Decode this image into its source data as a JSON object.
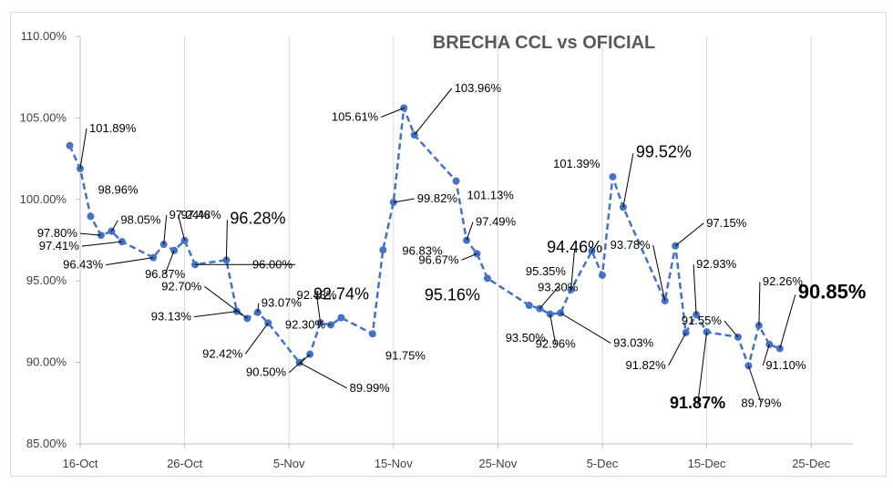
{
  "chart_data": {
    "type": "line",
    "title": "BRECHA CCL vs OFICIAL",
    "xlabel": "",
    "ylabel": "",
    "ylim": [
      85,
      110
    ],
    "yticks": [
      85,
      90,
      95,
      100,
      105,
      110
    ],
    "ytick_labels": [
      "85.00%",
      "90.00%",
      "95.00%",
      "100.00%",
      "105.00%",
      "110.00%"
    ],
    "xtick_labels": [
      "16-Oct",
      "26-Oct",
      "5-Nov",
      "15-Nov",
      "25-Nov",
      "5-Dec",
      "15-Dec",
      "25-Dec"
    ],
    "x_day_range": [
      0,
      74
    ],
    "grid": "vertical",
    "series_color": "#4472C4",
    "points": [
      {
        "x": "15-Oct",
        "y": 103.3,
        "label": ""
      },
      {
        "x": "16-Oct",
        "y": 101.89,
        "label": "101.89%"
      },
      {
        "x": "17-Oct",
        "y": 98.96,
        "label": "98.96%"
      },
      {
        "x": "18-Oct",
        "y": 97.8,
        "label": "97.80%"
      },
      {
        "x": "19-Oct",
        "y": 98.05,
        "label": "98.05%"
      },
      {
        "x": "20-Oct",
        "y": 97.41,
        "label": "97.41%"
      },
      {
        "x": "23-Oct",
        "y": 96.43,
        "label": "96.43%"
      },
      {
        "x": "24-Oct",
        "y": 97.24,
        "label": "97.24%"
      },
      {
        "x": "25-Oct",
        "y": 96.87,
        "label": "96.87%"
      },
      {
        "x": "26-Oct",
        "y": 97.48,
        "label": "97.48%"
      },
      {
        "x": "27-Oct",
        "y": 96.0,
        "label": "96.00%"
      },
      {
        "x": "30-Oct",
        "y": 96.28,
        "label": "96.28%"
      },
      {
        "x": "31-Oct",
        "y": 93.13,
        "label": "93.13%"
      },
      {
        "x": "1-Nov",
        "y": 92.7,
        "label": "92.70%"
      },
      {
        "x": "2-Nov",
        "y": 93.07,
        "label": "93.07%"
      },
      {
        "x": "3-Nov",
        "y": 92.42,
        "label": "92.42%"
      },
      {
        "x": "6-Nov",
        "y": 89.99,
        "label": "89.99%"
      },
      {
        "x": "7-Nov",
        "y": 90.5,
        "label": "90.50%"
      },
      {
        "x": "8-Nov",
        "y": 92.43,
        "label": "92.43%"
      },
      {
        "x": "9-Nov",
        "y": 92.3,
        "label": "92.30%"
      },
      {
        "x": "10-Nov",
        "y": 92.74,
        "label": "92.74%"
      },
      {
        "x": "13-Nov",
        "y": 91.75,
        "label": "91.75%"
      },
      {
        "x": "14-Nov",
        "y": 96.9,
        "label": ""
      },
      {
        "x": "15-Nov",
        "y": 99.82,
        "label": "99.82%"
      },
      {
        "x": "16-Nov",
        "y": 105.61,
        "label": "105.61%"
      },
      {
        "x": "17-Nov",
        "y": 103.96,
        "label": "103.96%"
      },
      {
        "x": "21-Nov",
        "y": 101.13,
        "label": "101.13%"
      },
      {
        "x": "22-Nov",
        "y": 97.49,
        "label": "97.49%"
      },
      {
        "x": "23-Nov",
        "y": 96.67,
        "label": "96.67%"
      },
      {
        "x": "24-Nov",
        "y": 95.16,
        "label": "95.16%"
      },
      {
        "x": "28-Nov",
        "y": 93.5,
        "label": "93.50%"
      },
      {
        "x": "29-Nov",
        "y": 93.3,
        "label": "93.30%"
      },
      {
        "x": "30-Nov",
        "y": 92.96,
        "label": "92.96%"
      },
      {
        "x": "1-Dec",
        "y": 93.03,
        "label": "93.03%"
      },
      {
        "x": "2-Dec",
        "y": 94.46,
        "label": "94.46%"
      },
      {
        "x": "4-Dec",
        "y": 96.83,
        "label": "96.83%"
      },
      {
        "x": "5-Dec",
        "y": 95.35,
        "label": "95.35%"
      },
      {
        "x": "6-Dec",
        "y": 101.39,
        "label": "101.39%"
      },
      {
        "x": "7-Dec",
        "y": 99.52,
        "label": "99.52%"
      },
      {
        "x": "11-Dec",
        "y": 93.78,
        "label": "93.78%"
      },
      {
        "x": "12-Dec",
        "y": 97.15,
        "label": "97.15%"
      },
      {
        "x": "13-Dec",
        "y": 91.82,
        "label": "91.82%"
      },
      {
        "x": "14-Dec",
        "y": 92.93,
        "label": "92.93%"
      },
      {
        "x": "15-Dec",
        "y": 91.87,
        "label": "91.87%"
      },
      {
        "x": "18-Dec",
        "y": 91.55,
        "label": "91.55%"
      },
      {
        "x": "19-Dec",
        "y": 89.79,
        "label": "89.79%"
      },
      {
        "x": "20-Dec",
        "y": 92.26,
        "label": "92.26%"
      },
      {
        "x": "21-Dec",
        "y": 91.1,
        "label": "91.10%"
      },
      {
        "x": "22-Dec",
        "y": 90.85,
        "label": "90.85%"
      }
    ]
  }
}
